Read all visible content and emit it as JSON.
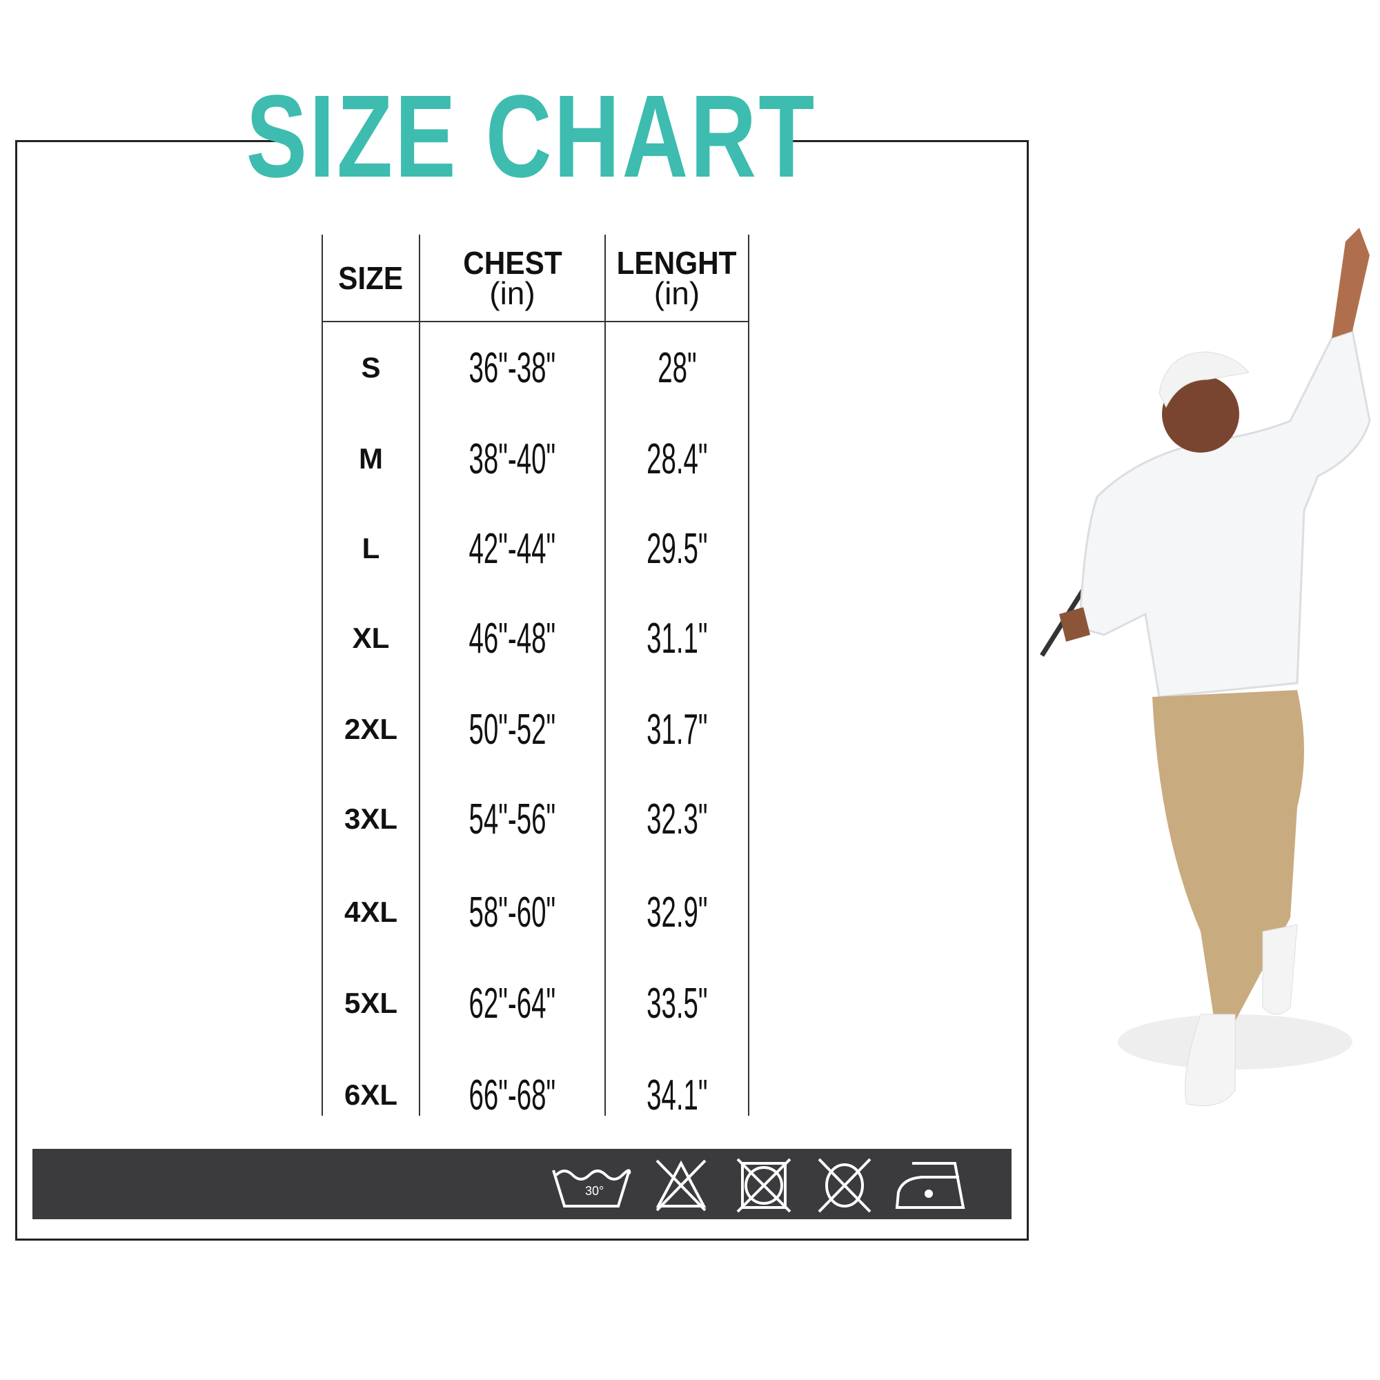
{
  "title": "SIZE CHART",
  "table": {
    "headers": [
      {
        "label": "SIZE",
        "unit": ""
      },
      {
        "label": "CHEST",
        "unit": "(in)"
      },
      {
        "label": "LENGHT",
        "unit": "(in)"
      }
    ],
    "rows": [
      {
        "size": "S",
        "chest": "36\"-38\"",
        "length": "28\""
      },
      {
        "size": "M",
        "chest": "38\"-40\"",
        "length": "28.4\""
      },
      {
        "size": "L",
        "chest": "42\"-44\"",
        "length": "29.5\""
      },
      {
        "size": "XL",
        "chest": "46\"-48\"",
        "length": "31.1\""
      },
      {
        "size": "2XL",
        "chest": "50\"-52\"",
        "length": "31.7\""
      },
      {
        "size": "3XL",
        "chest": "54\"-56\"",
        "length": "32.3\""
      },
      {
        "size": "4XL",
        "chest": "58\"-60\"",
        "length": "32.9\""
      },
      {
        "size": "5XL",
        "chest": "62\"-64\"",
        "length": "33.5\""
      },
      {
        "size": "6XL",
        "chest": "66\"-68\"",
        "length": "34.1\""
      }
    ]
  },
  "care_icons": [
    {
      "icon": "wash-30-icon",
      "label": "30°"
    },
    {
      "icon": "do-not-bleach-icon"
    },
    {
      "icon": "do-not-tumble-dry-icon"
    },
    {
      "icon": "do-not-dry-clean-icon"
    },
    {
      "icon": "iron-low-icon"
    }
  ],
  "colors": {
    "accent": "#3dbcaf",
    "bar": "#3b3a3d",
    "pants": "#c9ab80"
  }
}
